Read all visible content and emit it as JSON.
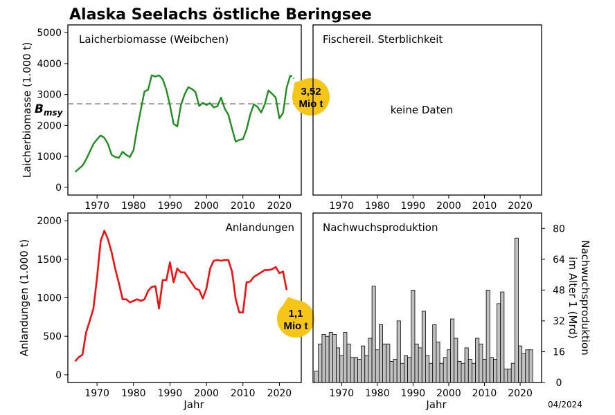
{
  "title": "Alaska Seelachs östliche Beringsee",
  "date": "04/2024",
  "colors": {
    "ssb": "#1e8c1e",
    "catch": "#ee1111",
    "bar": "#c0c0c0",
    "bubble": "#f5c518",
    "ref": "#777777"
  },
  "chart_data": [
    {
      "type": "line",
      "title": "Laicherbiomasse (Weibchen)",
      "ylabel": "Laicherbiomasse (1.000 t)",
      "xlim": [
        1962,
        2026
      ],
      "ylim": [
        -250,
        5250
      ],
      "xticks": [
        1970,
        1980,
        1990,
        2000,
        2010,
        2020
      ],
      "yticks": [
        0,
        1000,
        2000,
        3000,
        4000,
        5000
      ],
      "reference": {
        "label": "B",
        "label_sub": "msy",
        "value": 2700
      },
      "annotation": {
        "line1": "3,52",
        "line2": "Mio t",
        "x": 2023,
        "y": 3520
      },
      "series": [
        {
          "x": [
            1964,
            1965,
            1966,
            1967,
            1968,
            1969,
            1970,
            1971,
            1972,
            1973,
            1974,
            1975,
            1976,
            1977,
            1978,
            1979,
            1980,
            1981,
            1982,
            1983,
            1984,
            1985,
            1986,
            1987,
            1988,
            1989,
            1990,
            1991,
            1992,
            1993,
            1994,
            1995,
            1996,
            1997,
            1998,
            1999,
            2000,
            2001,
            2002,
            2003,
            2004,
            2005,
            2006,
            2007,
            2008,
            2009,
            2010,
            2011,
            2012,
            2013,
            2014,
            2015,
            2016,
            2017,
            2018,
            2019,
            2020,
            2021,
            2022,
            2023
          ],
          "y": [
            500,
            600,
            700,
            900,
            1150,
            1400,
            1550,
            1680,
            1600,
            1400,
            1050,
            980,
            950,
            1150,
            1050,
            980,
            1200,
            1900,
            2500,
            3100,
            3150,
            3620,
            3580,
            3620,
            3500,
            3150,
            2650,
            2050,
            1970,
            2650,
            3000,
            3230,
            3180,
            3080,
            2630,
            2730,
            2660,
            2720,
            2580,
            2620,
            2900,
            2550,
            2350,
            1900,
            1480,
            1530,
            1560,
            1870,
            2350,
            2680,
            2600,
            2420,
            2680,
            3130,
            3020,
            2900,
            2230,
            2400,
            3220,
            3620
          ]
        }
      ],
      "projection": {
        "x": [
          2023,
          2024
        ],
        "y": [
          3620,
          3520
        ]
      }
    },
    {
      "type": "line",
      "title": "Fischereil. Sterblichkeit",
      "message": "keine Daten",
      "xlim": [
        1962,
        2026
      ],
      "xticks": [
        1970,
        1980,
        1990,
        2000,
        2010,
        2020
      ],
      "series": []
    },
    {
      "type": "line",
      "title": "Anlandungen",
      "ylabel": "Anlandungen (1.000 t)",
      "xlabel": "Jahr",
      "xlim": [
        1962,
        2026
      ],
      "ylim": [
        -100,
        2100
      ],
      "xticks": [
        1970,
        1980,
        1990,
        2000,
        2010,
        2020
      ],
      "yticks": [
        0,
        500,
        1000,
        1500,
        2000
      ],
      "annotation": {
        "line1": "1,1",
        "line2": "Mio t",
        "x": 2022,
        "y": 1100
      },
      "series": [
        {
          "x": [
            1964,
            1965,
            1966,
            1967,
            1968,
            1969,
            1970,
            1971,
            1972,
            1973,
            1974,
            1975,
            1976,
            1977,
            1978,
            1979,
            1980,
            1981,
            1982,
            1983,
            1984,
            1985,
            1986,
            1987,
            1988,
            1989,
            1990,
            1991,
            1992,
            1993,
            1994,
            1995,
            1996,
            1997,
            1998,
            1999,
            2000,
            2001,
            2002,
            2003,
            2004,
            2005,
            2006,
            2007,
            2008,
            2009,
            2010,
            2011,
            2012,
            2013,
            2014,
            2015,
            2016,
            2017,
            2018,
            2019,
            2020,
            2021,
            2022
          ],
          "y": [
            175,
            230,
            260,
            550,
            700,
            860,
            1260,
            1740,
            1870,
            1760,
            1590,
            1370,
            1190,
            980,
            980,
            940,
            960,
            980,
            960,
            980,
            1090,
            1140,
            1150,
            860,
            1230,
            1230,
            1460,
            1200,
            1380,
            1330,
            1330,
            1260,
            1190,
            1120,
            1100,
            990,
            1120,
            1380,
            1480,
            1490,
            1480,
            1490,
            1490,
            1340,
            990,
            810,
            810,
            1200,
            1210,
            1270,
            1300,
            1330,
            1360,
            1360,
            1370,
            1400,
            1320,
            1340,
            1100
          ]
        }
      ]
    },
    {
      "type": "bar",
      "title": "Nachwuchsproduktion",
      "ylabel_line1": "Nachwuchsproduktion",
      "ylabel_line2": "im Alter 1 (Mrd)",
      "xlabel": "Jahr",
      "xlim": [
        1962,
        2026
      ],
      "ylim": [
        0,
        88
      ],
      "xticks": [
        1970,
        1980,
        1990,
        2000,
        2010,
        2020
      ],
      "yticks": [
        0,
        16,
        32,
        48,
        64,
        80
      ],
      "x": [
        1963,
        1964,
        1965,
        1966,
        1967,
        1968,
        1969,
        1970,
        1971,
        1972,
        1973,
        1974,
        1975,
        1976,
        1977,
        1978,
        1979,
        1980,
        1981,
        1982,
        1983,
        1984,
        1985,
        1986,
        1987,
        1988,
        1989,
        1990,
        1991,
        1992,
        1993,
        1994,
        1995,
        1996,
        1997,
        1998,
        1999,
        2000,
        2001,
        2002,
        2003,
        2004,
        2005,
        2006,
        2007,
        2008,
        2009,
        2010,
        2011,
        2012,
        2013,
        2014,
        2015,
        2016,
        2017,
        2018,
        2019,
        2020,
        2021,
        2022,
        2023
      ],
      "values": [
        6,
        20,
        25,
        24,
        26,
        25,
        18,
        14,
        26,
        20,
        13,
        13,
        12,
        19,
        14,
        23,
        50,
        17,
        30,
        20,
        20,
        11,
        12,
        32,
        10,
        14,
        13,
        48,
        20,
        18,
        37,
        14,
        10,
        30,
        21,
        10,
        13,
        17,
        33,
        23,
        11,
        10,
        18,
        12,
        10,
        23,
        20,
        12,
        48,
        13,
        12,
        41,
        47,
        7,
        7,
        10,
        75,
        19,
        15,
        17,
        17
      ]
    }
  ]
}
